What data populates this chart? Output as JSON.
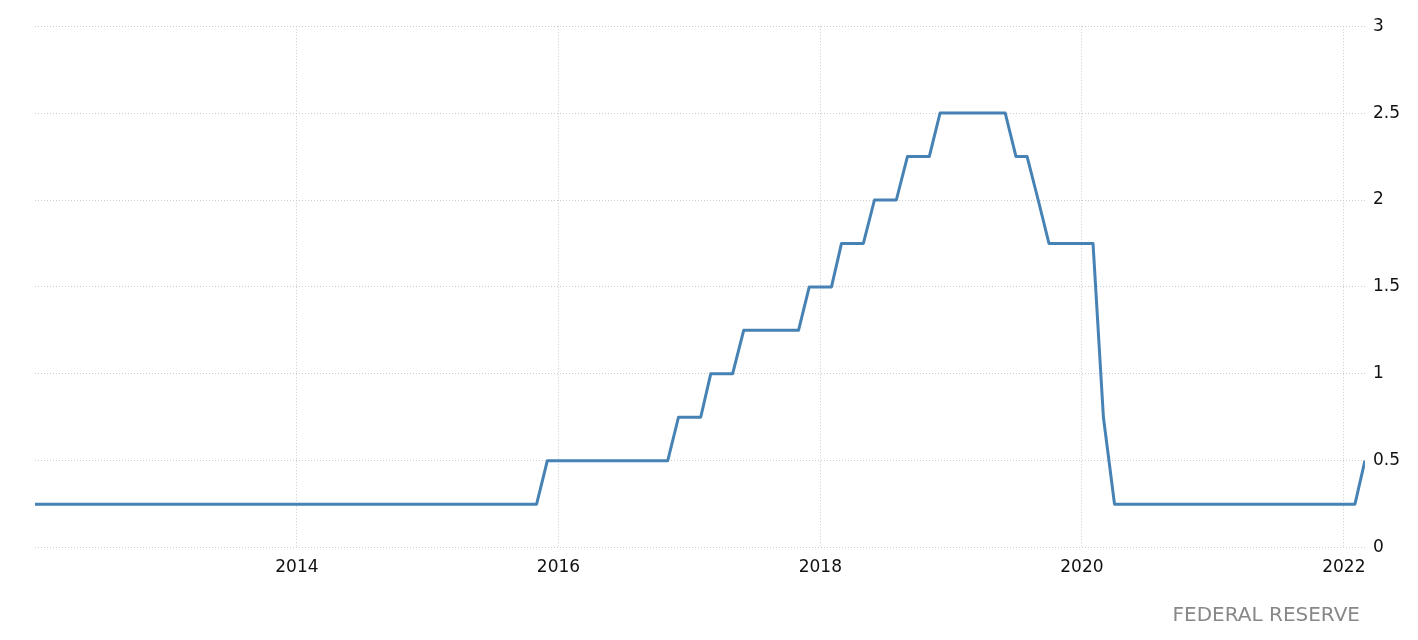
{
  "chart_data": {
    "type": "line",
    "annotations": [
      "FEDERAL RESERVE"
    ],
    "x": [
      "2012-01",
      "2015-11",
      "2015-12",
      "2016-11",
      "2016-12",
      "2017-02",
      "2017-03",
      "2017-05",
      "2017-06",
      "2017-11",
      "2017-12",
      "2018-02",
      "2018-03",
      "2018-05",
      "2018-06",
      "2018-08",
      "2018-09",
      "2018-11",
      "2018-12",
      "2019-06",
      "2019-07",
      "2019-08",
      "2019-09",
      "2019-10",
      "2020-02",
      "2020-03",
      "2020-04",
      "2022-02",
      "2022-03"
    ],
    "series": [
      {
        "color": "#4682b4",
        "values": [
          0.25,
          0.25,
          0.5,
          0.5,
          0.75,
          0.75,
          1,
          1,
          1.25,
          1.25,
          1.5,
          1.5,
          1.75,
          1.75,
          2,
          2,
          2.25,
          2.25,
          2.5,
          2.5,
          2.25,
          2.25,
          2,
          1.75,
          1.75,
          0.75,
          0.25,
          0.25,
          0.5
        ]
      }
    ],
    "xlim": [
      "2012-01",
      "2022-03"
    ],
    "xticks": [
      "2014",
      "2016",
      "2018",
      "2020",
      "2022"
    ],
    "ylim": [
      0,
      3
    ],
    "yticks": [
      0,
      0.5,
      1,
      1.5,
      2,
      2.5,
      3
    ],
    "grid": true,
    "legend": false,
    "marker": "none",
    "line_style": "solid"
  }
}
